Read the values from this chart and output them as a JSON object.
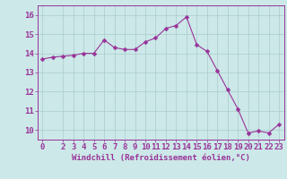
{
  "x": [
    0,
    1,
    2,
    3,
    4,
    5,
    6,
    7,
    8,
    9,
    10,
    11,
    12,
    13,
    14,
    15,
    16,
    17,
    18,
    19,
    20,
    21,
    22,
    23
  ],
  "y": [
    13.7,
    13.8,
    13.85,
    13.9,
    14.0,
    14.0,
    14.7,
    14.3,
    14.2,
    14.2,
    14.6,
    14.8,
    15.3,
    15.45,
    15.9,
    14.45,
    14.1,
    13.1,
    12.1,
    11.1,
    9.85,
    9.95,
    9.85,
    10.3
  ],
  "line_color": "#993399",
  "marker": "D",
  "marker_size": 2.5,
  "bg_color": "#cce8e8",
  "grid_color": "#aacccc",
  "axis_color": "#993399",
  "xlabel": "Windchill (Refroidissement éolien,°C)",
  "xlabel_fontsize": 6.5,
  "tick_fontsize": 6.5,
  "xlim": [
    -0.5,
    23.5
  ],
  "ylim": [
    9.5,
    16.5
  ],
  "yticks": [
    10,
    11,
    12,
    13,
    14,
    15,
    16
  ],
  "xticks": [
    0,
    2,
    3,
    4,
    5,
    6,
    7,
    8,
    9,
    10,
    11,
    12,
    13,
    14,
    15,
    16,
    17,
    18,
    19,
    20,
    21,
    22,
    23
  ]
}
